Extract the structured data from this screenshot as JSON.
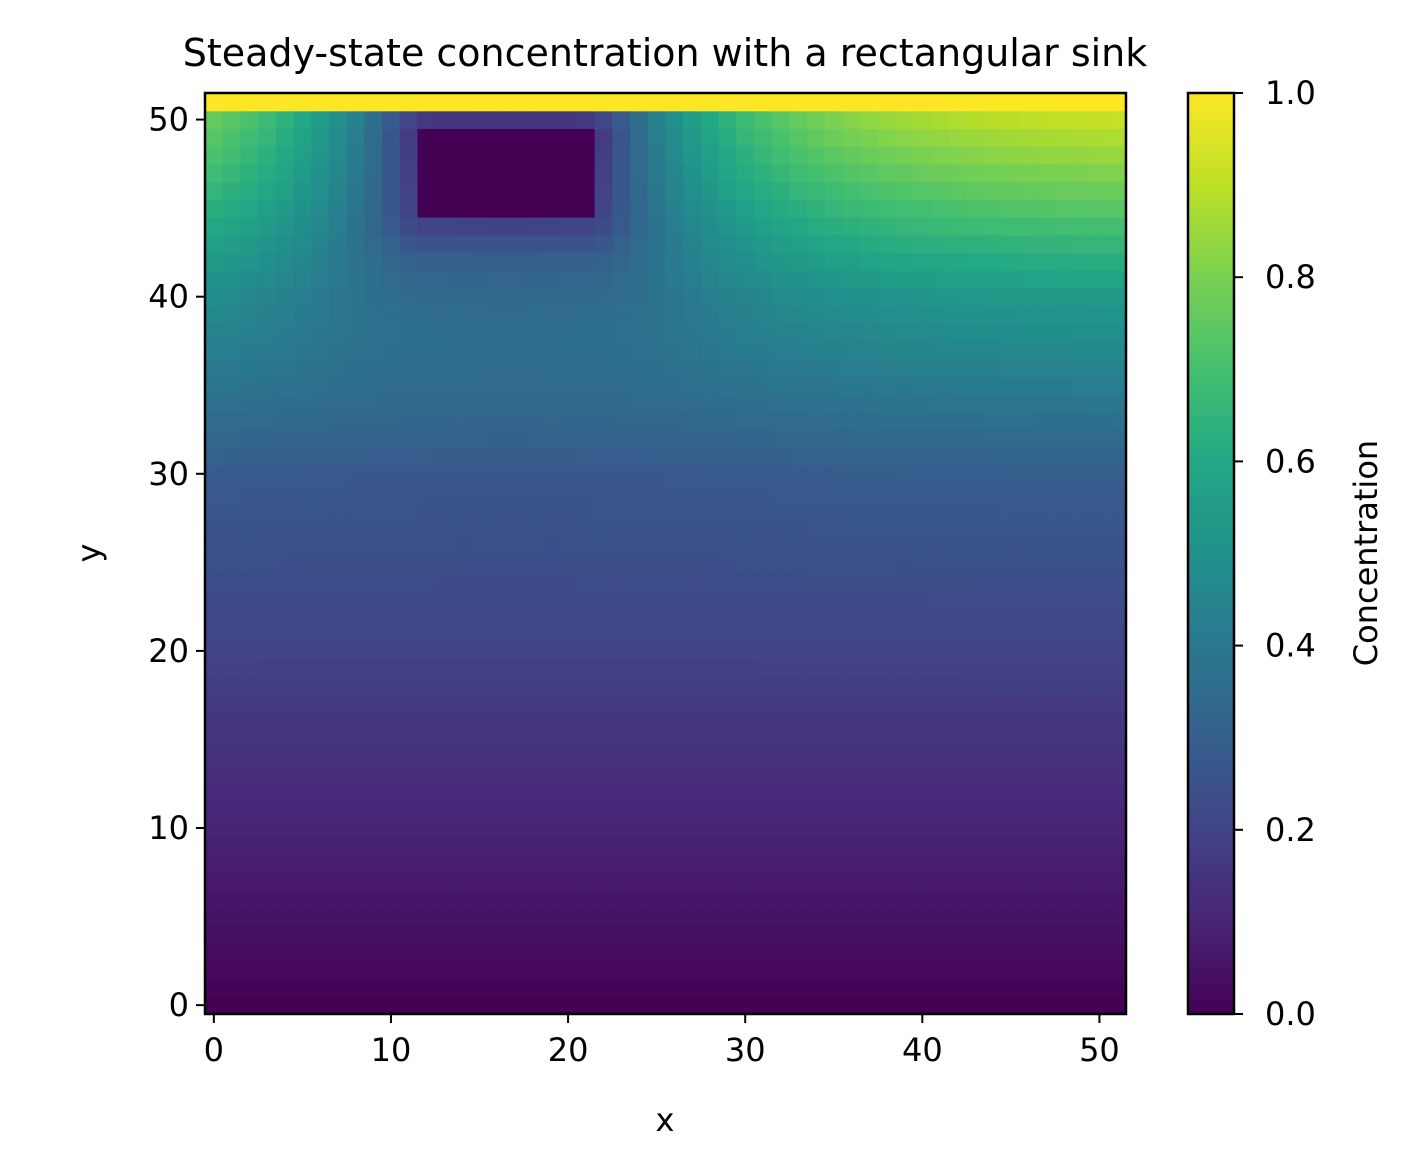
{
  "chart_data": {
    "type": "heatmap",
    "title": "Steady-state concentration with a rectangular sink",
    "xlabel": "x",
    "ylabel": "y",
    "xlim": [
      -0.5,
      51.5
    ],
    "ylim": [
      -0.5,
      51.5
    ],
    "x_ticks": [
      0,
      10,
      20,
      30,
      40,
      50
    ],
    "y_ticks": [
      0,
      10,
      20,
      30,
      40,
      50
    ],
    "grid": false,
    "colormap": "viridis",
    "colorbar": {
      "label": "Concentration",
      "vmin": 0.0,
      "vmax": 1.0,
      "ticks": [
        0.0,
        0.2,
        0.4,
        0.6,
        0.8,
        1.0
      ]
    },
    "grid_size": [
      52,
      52
    ],
    "boundary_condition": {
      "top_row_y": 51,
      "value": 1.0
    },
    "sink": {
      "x_range": [
        12,
        21
      ],
      "y_range": [
        45,
        49
      ],
      "value": 0.0
    },
    "sample_values": [
      {
        "y": 0,
        "value": 0.0
      },
      {
        "y": 10,
        "value": 0.1
      },
      {
        "y": 20,
        "value": 0.2
      },
      {
        "y": 30,
        "value": 0.3
      },
      {
        "y": 40,
        "value": 0.55
      },
      {
        "y": 45,
        "value": 0.75
      },
      {
        "y": 50,
        "value": 0.93
      },
      {
        "y": 51,
        "value": 1.0
      }
    ]
  }
}
